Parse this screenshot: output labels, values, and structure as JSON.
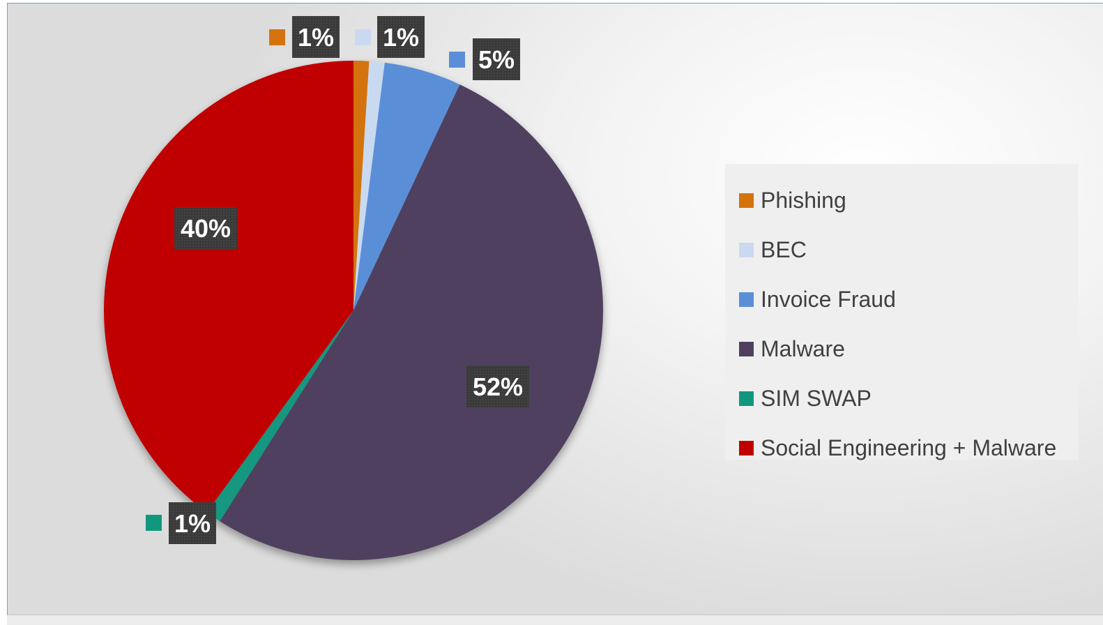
{
  "chart_data": {
    "type": "pie",
    "categories": [
      "Phishing",
      "BEC",
      "Invoice Fraud",
      "Malware",
      "SIM SWAP",
      "Social Engineering + Malware"
    ],
    "values": [
      1,
      1,
      5,
      52,
      1,
      40
    ],
    "data_labels": [
      "1%",
      "1%",
      "5%",
      "52%",
      "1%",
      "40%"
    ],
    "colors": [
      "#d4730c",
      "#c9daf0",
      "#5a8fd8",
      "#4f4060",
      "#12977f",
      "#c00000"
    ],
    "start_angle_deg": 0,
    "direction": "clockwise",
    "legend_position": "right",
    "title": ""
  }
}
